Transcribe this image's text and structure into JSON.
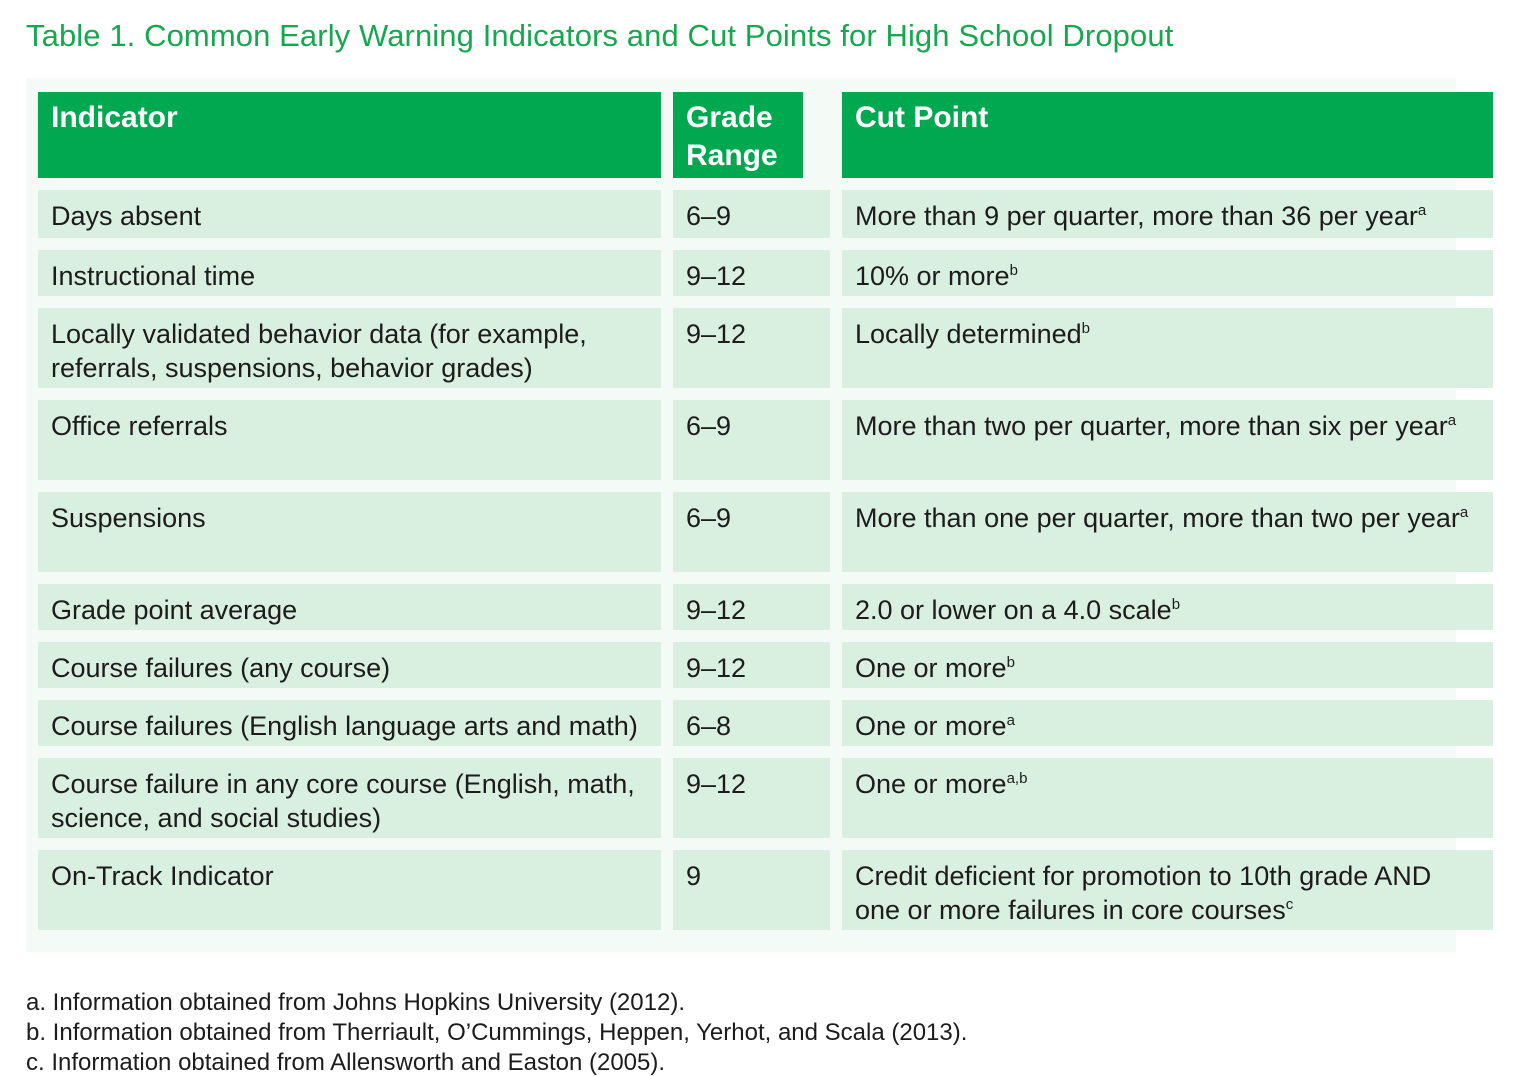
{
  "title": "Table 1. Common Early Warning Indicators and Cut Points for High School Dropout",
  "headers": {
    "indicator": "Indicator",
    "grade_range": "Grade Range",
    "cut_point": "Cut Point"
  },
  "rows": [
    {
      "indicator": "Days absent",
      "grade": "6–9",
      "cut": "More than 9 per quarter, more than 36 per year",
      "note": "a"
    },
    {
      "indicator": "Instructional time",
      "grade": "9–12",
      "cut": "10% or more",
      "note": "b"
    },
    {
      "indicator": "Locally validated behavior data (for example, referrals, suspensions, behavior grades)",
      "grade": "9–12",
      "cut": "Locally determined",
      "note": "b"
    },
    {
      "indicator": "Office referrals",
      "grade": "6–9",
      "cut": "More than two per quarter, more than six per year",
      "note": "a"
    },
    {
      "indicator": "Suspensions",
      "grade": "6–9",
      "cut": "More than one per quarter, more than two per year",
      "note": "a"
    },
    {
      "indicator": "Grade point average",
      "grade": "9–12",
      "cut": "2.0 or lower on a 4.0 scale",
      "note": "b"
    },
    {
      "indicator": "Course failures (any course)",
      "grade": "9–12",
      "cut": "One or more",
      "note": "b"
    },
    {
      "indicator": "Course failures (English language arts and math)",
      "grade": "6–8",
      "cut": "One or more",
      "note": "a"
    },
    {
      "indicator": "Course failure in any core course (English, math, science, and social studies)",
      "grade": "9–12",
      "cut": "One or more",
      "note": "a,b"
    },
    {
      "indicator": "On-Track Indicator",
      "grade": "9",
      "cut": "Credit deficient for promotion to 10th grade AND one or more failures in core courses",
      "note": "c"
    }
  ],
  "footnotes": [
    "a. Information obtained from Johns Hopkins University (2012).",
    "b. Information obtained from Therriault, O’Cummings, Heppen, Yerhot, and Scala (2013).",
    "c. Information obtained from Allensworth and Easton (2005)."
  ]
}
